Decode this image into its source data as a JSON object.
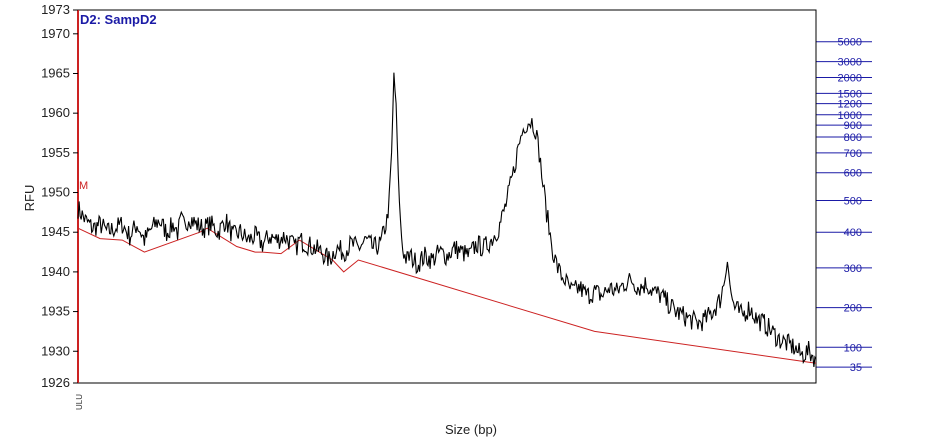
{
  "chart_data": {
    "type": "line",
    "title": "",
    "sample_label": "D2: SampD2",
    "xlabel": "Size (bp)",
    "ylabel": "RFU",
    "ylim": [
      1926,
      1973
    ],
    "y_ticks": [
      1926,
      1930,
      1935,
      1940,
      1945,
      1950,
      1955,
      1960,
      1965,
      1970,
      1973
    ],
    "xlim": [
      0,
      1000
    ],
    "marker_label": "M",
    "left_strip_text": "ULU",
    "ladder": {
      "labels": [
        "5000",
        "3000",
        "2000",
        "1500",
        "1200",
        "1000",
        "900",
        "800",
        "700",
        "600",
        "500",
        "400",
        "300",
        "200",
        "100",
        "35"
      ],
      "rfu": [
        1969.0,
        1966.5,
        1964.5,
        1962.5,
        1961.2,
        1959.8,
        1958.5,
        1957.0,
        1955.0,
        1952.5,
        1949.0,
        1945.0,
        1940.5,
        1935.5,
        1930.5,
        1928.0
      ],
      "color": "#1a1aa6"
    },
    "colors": {
      "signal": "#000000",
      "baseline": "#cc2222",
      "ladder": "#1a1aa6",
      "axis": "#000000"
    },
    "baseline": {
      "x": [
        0,
        30,
        60,
        90,
        165,
        175,
        215,
        240,
        250,
        275,
        300,
        345,
        360,
        380,
        700,
        1000
      ],
      "y": [
        1945.5,
        1944.2,
        1944.0,
        1942.5,
        1945.0,
        1945.5,
        1943.2,
        1942.5,
        1942.5,
        1942.3,
        1944.0,
        1941.5,
        1940.0,
        1941.5,
        1932.5,
        1928.5
      ]
    },
    "signal": {
      "x": [
        0,
        10,
        20,
        30,
        40,
        50,
        60,
        70,
        80,
        90,
        100,
        110,
        120,
        130,
        135,
        140,
        145,
        150,
        160,
        170,
        180,
        190,
        200,
        210,
        220,
        230,
        240,
        250,
        260,
        270,
        280,
        290,
        295,
        300,
        310,
        320,
        330,
        340,
        350,
        360,
        370,
        380,
        390,
        400,
        410,
        420,
        425,
        428,
        431,
        434,
        437,
        440,
        443,
        446,
        450,
        455,
        460,
        470,
        480,
        490,
        500,
        510,
        520,
        530,
        540,
        550,
        560,
        570,
        580,
        590,
        595,
        600,
        605,
        610,
        615,
        620,
        625,
        630,
        635,
        640,
        645,
        650,
        655,
        660,
        665,
        670,
        680,
        690,
        700,
        710,
        720,
        730,
        740,
        750,
        760,
        770,
        780,
        790,
        800,
        810,
        820,
        830,
        840,
        850,
        860,
        870,
        875,
        880,
        885,
        890,
        900,
        910,
        920,
        930,
        940,
        950,
        960,
        970,
        980,
        990,
        1000
      ],
      "y": [
        1948.0,
        1946.5,
        1945.5,
        1946.0,
        1945.0,
        1945.5,
        1946.0,
        1944.5,
        1946.0,
        1944.0,
        1945.5,
        1946.5,
        1945.0,
        1946.0,
        1945.0,
        1946.5,
        1945.5,
        1947.0,
        1946.0,
        1945.5,
        1946.0,
        1945.0,
        1946.5,
        1944.5,
        1945.0,
        1944.0,
        1944.5,
        1943.5,
        1944.5,
        1944.0,
        1944.5,
        1943.5,
        1943.0,
        1944.0,
        1943.5,
        1943.0,
        1942.5,
        1941.5,
        1943.0,
        1942.5,
        1943.5,
        1943.0,
        1944.0,
        1943.0,
        1943.5,
        1947.0,
        1955.0,
        1965.0,
        1961.0,
        1952.0,
        1946.0,
        1943.0,
        1942.0,
        1941.5,
        1942.0,
        1941.5,
        1941.0,
        1942.0,
        1941.5,
        1942.5,
        1942.0,
        1943.0,
        1942.5,
        1942.0,
        1943.5,
        1943.0,
        1944.0,
        1945.5,
        1948.5,
        1952.5,
        1955.0,
        1957.0,
        1958.5,
        1959.0,
        1959.0,
        1958.0,
        1955.0,
        1951.0,
        1947.5,
        1944.5,
        1942.0,
        1940.5,
        1939.5,
        1939.0,
        1938.0,
        1937.5,
        1938.0,
        1937.0,
        1937.5,
        1937.0,
        1938.0,
        1937.5,
        1938.5,
        1939.0,
        1938.0,
        1938.5,
        1937.5,
        1937.0,
        1936.0,
        1935.0,
        1934.5,
        1934.0,
        1933.5,
        1934.0,
        1935.0,
        1936.5,
        1938.5,
        1941.5,
        1937.0,
        1935.5,
        1934.5,
        1935.5,
        1934.0,
        1933.5,
        1932.5,
        1931.5,
        1931.0,
        1930.5,
        1929.5,
        1930.0,
        1929.0
      ]
    }
  }
}
